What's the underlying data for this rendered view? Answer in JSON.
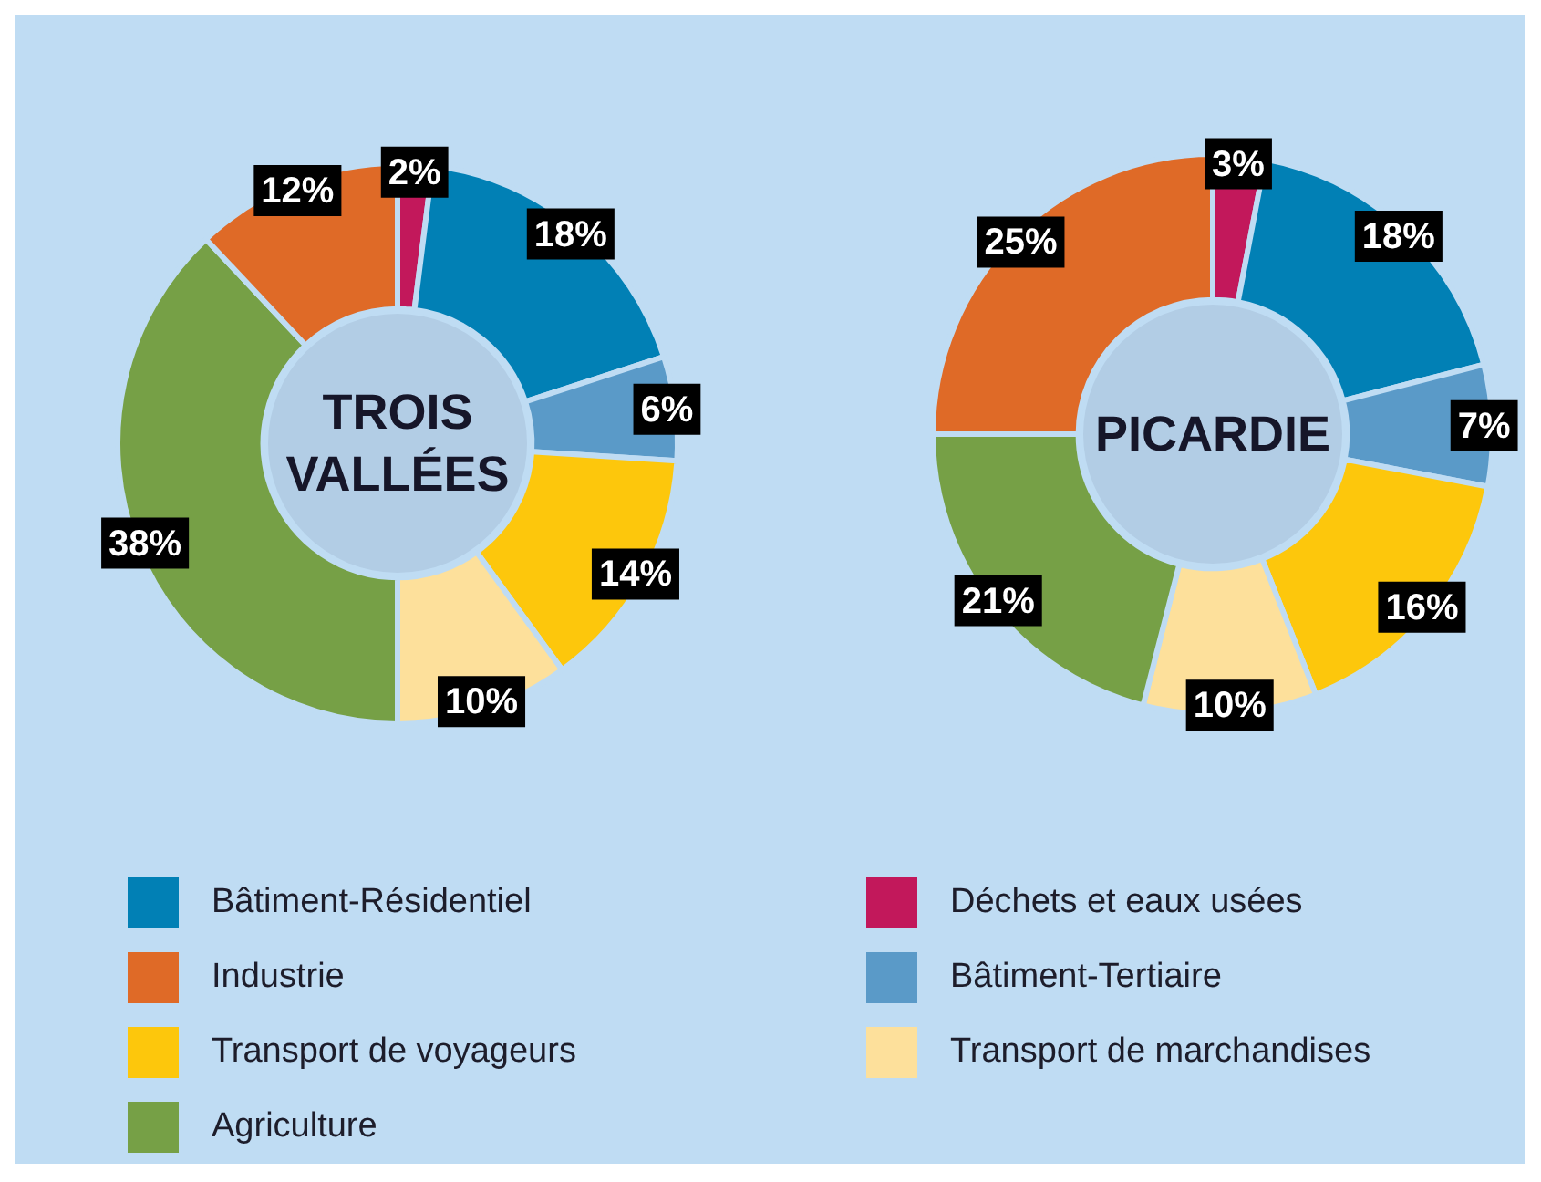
{
  "chart_data": [
    {
      "type": "donut",
      "title": "TROIS VALLÉES",
      "categories": [
        "Déchets et eaux usées",
        "Bâtiment-Résidentiel",
        "Bâtiment-Tertiaire",
        "Transport de voyageurs",
        "Transport de marchandises",
        "Agriculture",
        "Industrie"
      ],
      "values": [
        2,
        18,
        6,
        14,
        10,
        38,
        12
      ],
      "value_labels": [
        "2%",
        "18%",
        "6%",
        "14%",
        "10%",
        "38%",
        "12%"
      ],
      "colors": [
        "#c2185b",
        "#0180b5",
        "#5a9ac8",
        "#fdc70c",
        "#fde09b",
        "#76a046",
        "#df6a27"
      ],
      "legend": "bottom"
    },
    {
      "type": "donut",
      "title": "PICARDIE",
      "categories": [
        null,
        null,
        null,
        null,
        null,
        null,
        null
      ],
      "values": [
        3,
        18,
        7,
        16,
        10,
        21,
        25
      ],
      "value_labels": [
        "3%",
        "18%",
        "7%",
        "16%",
        "10%",
        "21%",
        "25%"
      ],
      "colors": [
        "#c2185b",
        "#0180b5",
        "#5a9ac8",
        "#fdc70c",
        "#fde09b",
        "#76a046",
        "#df6a27"
      ]
    }
  ]
}
